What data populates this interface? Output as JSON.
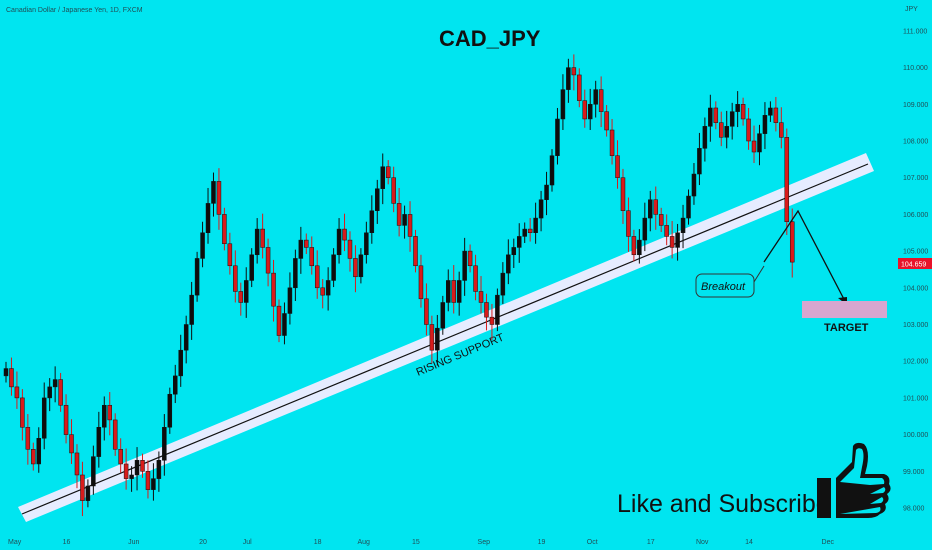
{
  "chart_data": {
    "type": "candlestick",
    "symbol_header": "Canadian Dollar / Japanese Yen, 1D, FXCM",
    "title": "CAD_JPY",
    "currency_label": "JPY",
    "last_price": "104.659",
    "y_ticks": [
      "98.000",
      "99.000",
      "100.000",
      "101.000",
      "102.000",
      "103.000",
      "104.000",
      "105.000",
      "106.000",
      "107.000",
      "108.000",
      "109.000",
      "110.000",
      "111.000"
    ],
    "x_ticks": [
      {
        "label": "May",
        "i": 0
      },
      {
        "label": "16",
        "i": 10
      },
      {
        "label": "Jun",
        "i": 22
      },
      {
        "label": "20",
        "i": 35
      },
      {
        "label": "Jul",
        "i": 43
      },
      {
        "label": "18",
        "i": 56
      },
      {
        "label": "Aug",
        "i": 64
      },
      {
        "label": "15",
        "i": 74
      },
      {
        "label": "Sep",
        "i": 86
      },
      {
        "label": "19",
        "i": 97
      },
      {
        "label": "Oct",
        "i": 106
      },
      {
        "label": "17",
        "i": 117
      },
      {
        "label": "Nov",
        "i": 126
      },
      {
        "label": "14",
        "i": 135
      },
      {
        "label": "Dec",
        "i": 149
      }
    ],
    "closes": [
      101.8,
      101.3,
      101.0,
      100.2,
      99.6,
      99.2,
      99.9,
      101.0,
      101.3,
      101.5,
      100.8,
      100.0,
      99.5,
      98.9,
      98.2,
      98.6,
      99.4,
      100.2,
      100.8,
      100.4,
      99.6,
      99.2,
      98.8,
      98.9,
      99.3,
      99.0,
      98.5,
      98.8,
      99.3,
      100.2,
      101.1,
      101.6,
      102.3,
      103.0,
      103.8,
      104.8,
      105.5,
      106.3,
      106.9,
      106.0,
      105.2,
      104.6,
      103.9,
      103.6,
      104.2,
      104.9,
      105.6,
      105.1,
      104.4,
      103.5,
      102.7,
      103.3,
      104.0,
      104.8,
      105.3,
      105.1,
      104.6,
      104.0,
      103.8,
      104.2,
      104.9,
      105.6,
      105.3,
      104.8,
      104.3,
      104.9,
      105.5,
      106.1,
      106.7,
      107.3,
      107.0,
      106.3,
      105.7,
      106.0,
      105.4,
      104.6,
      103.7,
      103.0,
      102.3,
      102.9,
      103.6,
      104.2,
      103.6,
      104.2,
      105.0,
      104.6,
      103.9,
      103.6,
      103.2,
      103.0,
      103.8,
      104.4,
      104.9,
      105.1,
      105.4,
      105.6,
      105.5,
      105.9,
      106.4,
      106.8,
      107.6,
      108.6,
      109.4,
      110.0,
      109.8,
      109.1,
      108.6,
      109.0,
      109.4,
      108.8,
      108.3,
      107.6,
      107.0,
      106.1,
      105.4,
      104.9,
      105.3,
      105.9,
      106.4,
      106.0,
      105.7,
      105.4,
      105.1,
      105.5,
      105.9,
      106.5,
      107.1,
      107.8,
      108.4,
      108.9,
      108.5,
      108.1,
      108.4,
      108.8,
      109.0,
      108.6,
      108.0,
      107.7,
      108.2,
      108.7,
      108.9,
      108.5,
      108.1,
      105.8,
      104.7
    ],
    "support_label": "RISING SUPPORT",
    "breakout_label": "Breakout",
    "target_label": "TARGET",
    "cta_text": "Like and Subscribe",
    "colors": {
      "bg": "#00e5f0",
      "up": "#0d0d0d",
      "down": "#d81b1b",
      "band": "#e6ecff",
      "target": "#d7a6cf",
      "price_tag": "#e8132a"
    }
  }
}
